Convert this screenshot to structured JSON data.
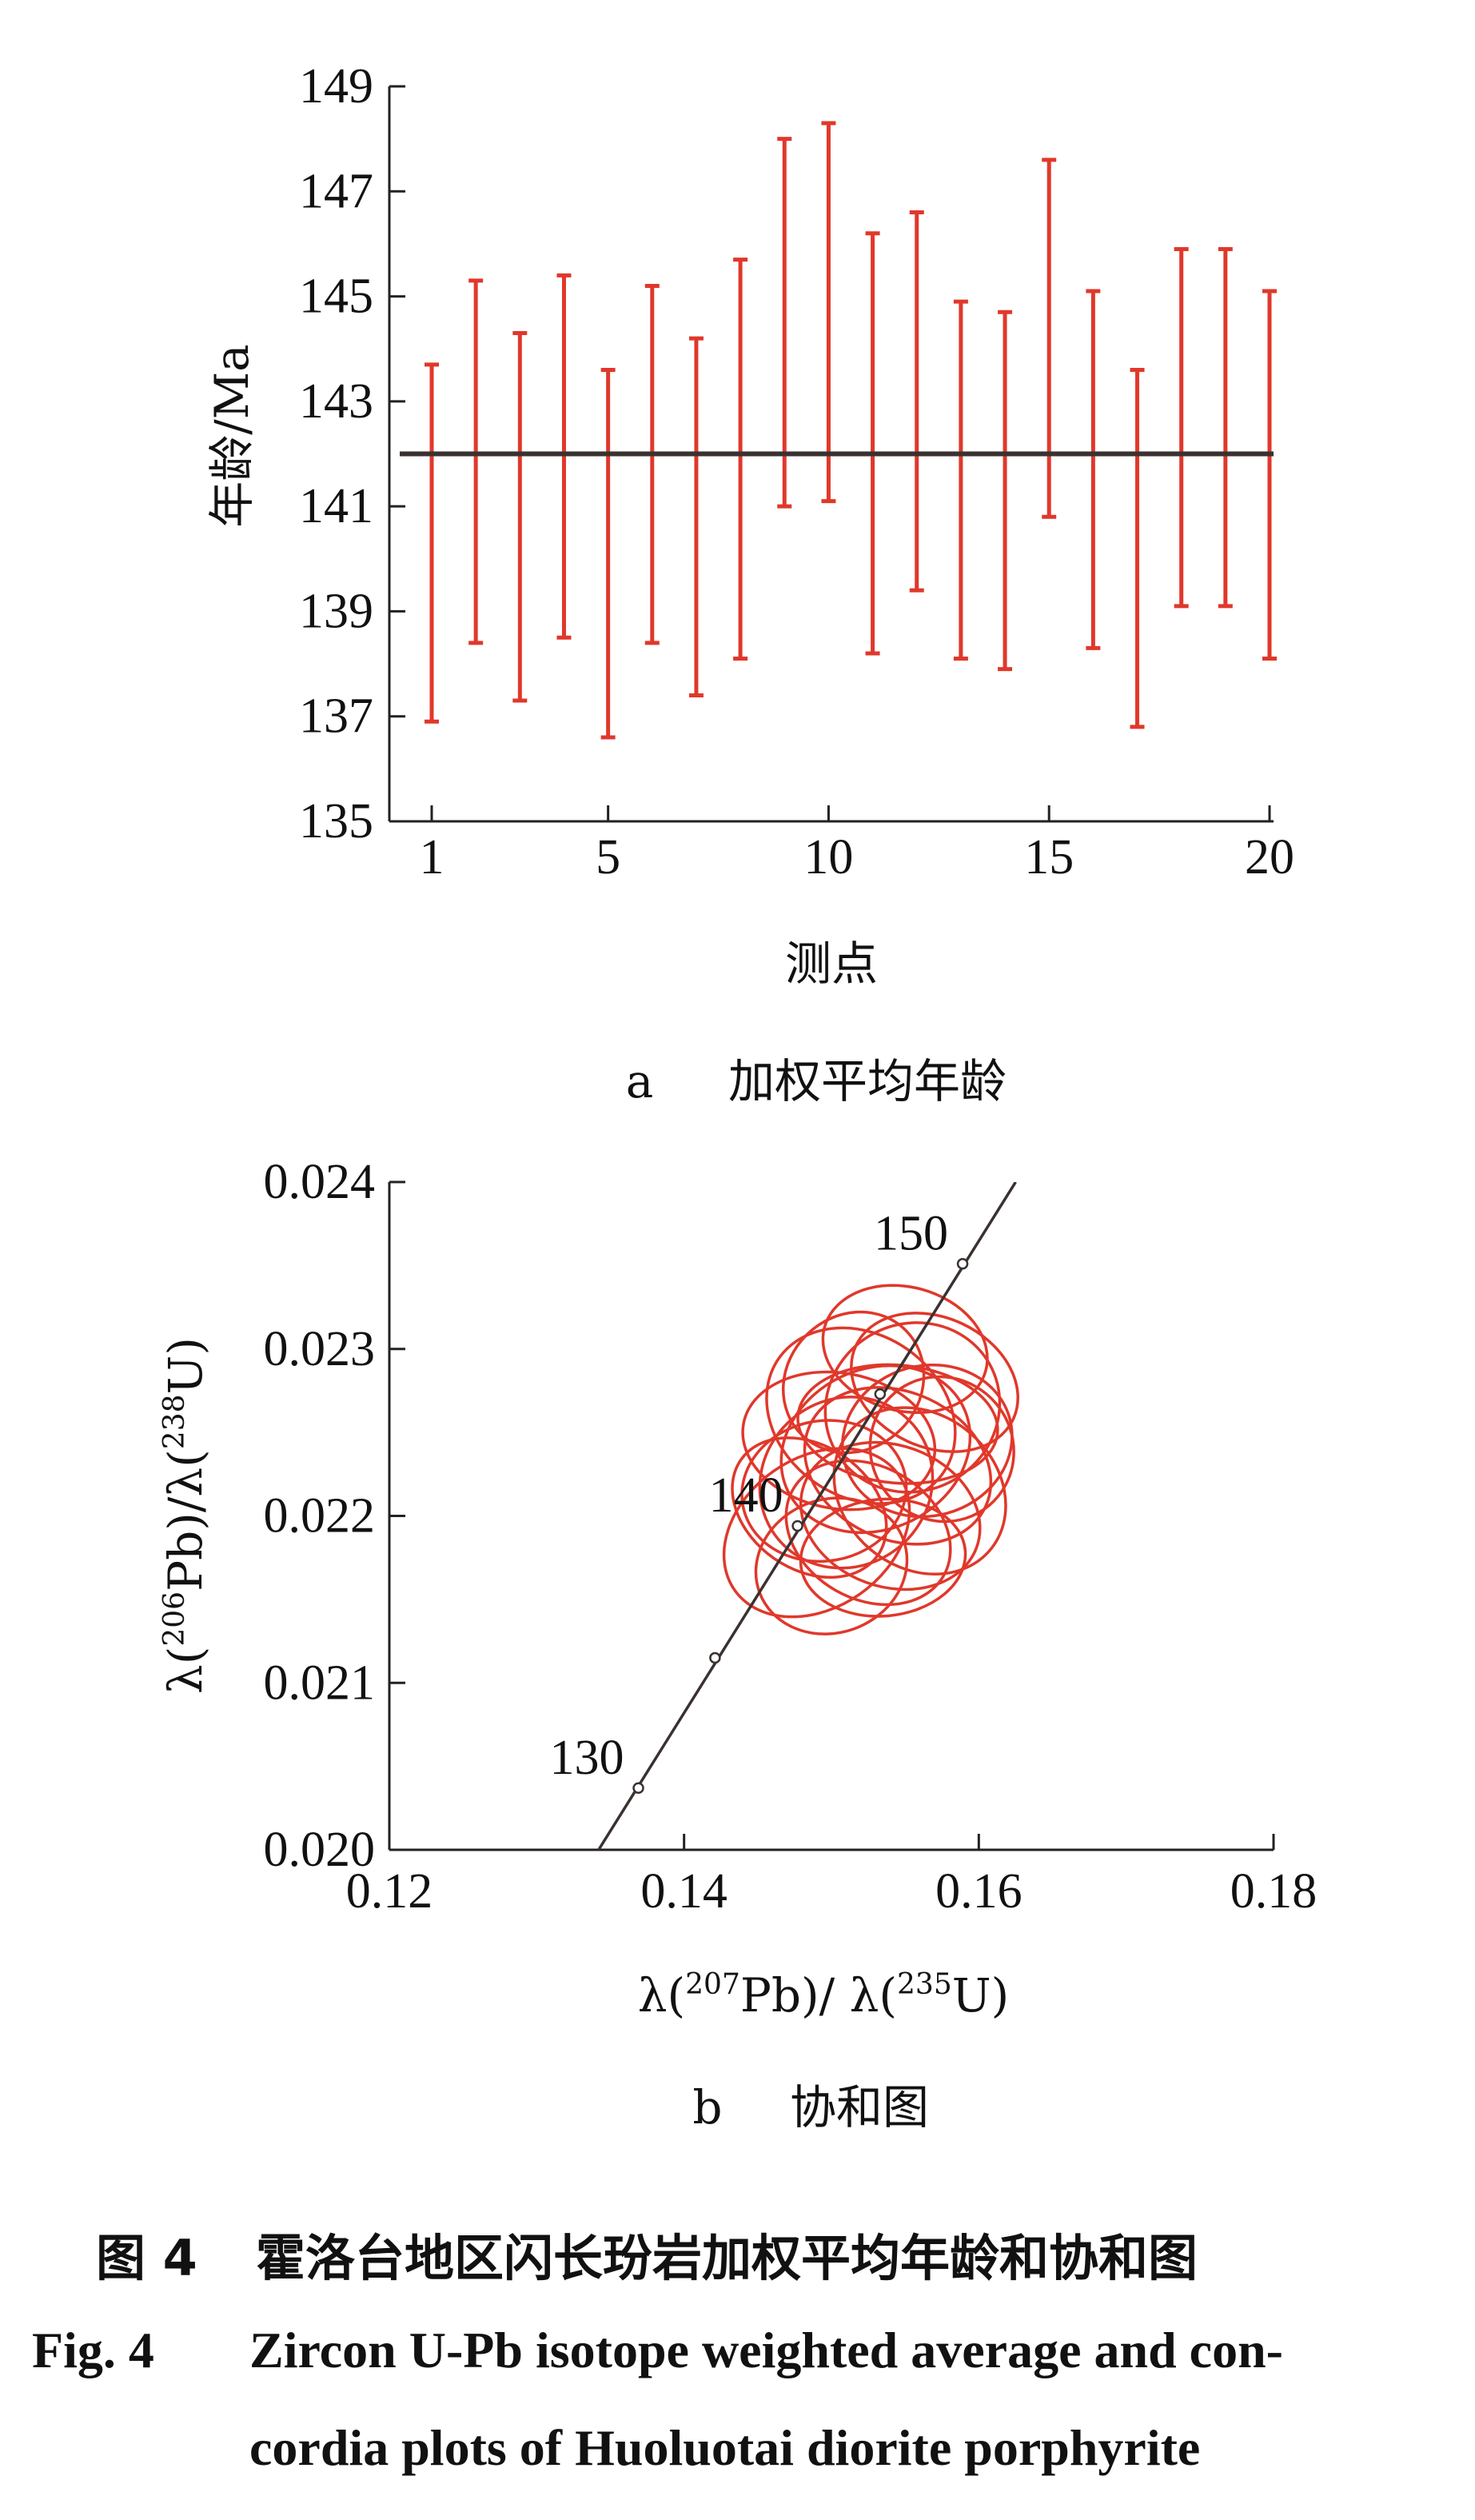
{
  "chart_data": [
    {
      "type": "errorbar",
      "panel_label": "a",
      "panel_title": "加权平均年龄",
      "xlabel": "测点",
      "ylabel": "年龄/Ma",
      "ylim": [
        135,
        149
      ],
      "yticks": [
        135,
        137,
        139,
        141,
        143,
        145,
        147,
        149
      ],
      "xticks": [
        1,
        5,
        10,
        15,
        20
      ],
      "x": [
        1,
        2,
        3,
        4,
        5,
        6,
        7,
        8,
        9,
        10,
        11,
        12,
        13,
        14,
        15,
        16,
        17,
        18,
        19,
        20
      ],
      "upper": [
        143.7,
        145.3,
        144.3,
        145.4,
        143.6,
        145.2,
        144.2,
        145.7,
        148.0,
        148.3,
        146.2,
        146.6,
        144.9,
        144.7,
        147.6,
        145.1,
        143.6,
        145.9,
        145.9,
        145.1
      ],
      "lower": [
        136.9,
        138.4,
        137.3,
        138.5,
        136.6,
        138.4,
        137.4,
        138.1,
        141.0,
        141.1,
        138.2,
        139.4,
        138.1,
        137.9,
        140.8,
        138.3,
        136.8,
        139.1,
        139.1,
        138.1
      ],
      "weighted_mean": 142.0,
      "colors": {
        "bars": "#e0382b",
        "mean": "#3a3230"
      }
    },
    {
      "type": "concordia",
      "panel_label": "b",
      "panel_title": "协和图",
      "xlabel": {
        "a": "λ(",
        "sup1": "207",
        "b": "Pb)/ λ(",
        "sup2": "235",
        "c": "U)"
      },
      "ylabel": {
        "a": "λ(",
        "sup1": "206",
        "b": "Pb)/λ(",
        "sup2": "238",
        "c": "U)"
      },
      "xlim": [
        0.12,
        0.18
      ],
      "ylim": [
        0.02,
        0.024
      ],
      "xticks": [
        "0.12",
        "0.14",
        "0.16",
        "0.18"
      ],
      "yticks": [
        "0.020",
        "0.021",
        "0.022",
        "0.023",
        "0.024"
      ],
      "concordia_age_labels": [
        "130",
        "140",
        "150"
      ],
      "concordia_points": [
        [
          0.1369,
          0.02037
        ],
        [
          0.1421,
          0.02115
        ],
        [
          0.1477,
          0.02194
        ],
        [
          0.1533,
          0.02273
        ],
        [
          0.1589,
          0.02351
        ]
      ],
      "concordia_line": [
        [
          0.1342,
          0.02
        ],
        [
          0.1625,
          0.024
        ]
      ],
      "ellipses": [
        {
          "cx": 0.149,
          "cy": 0.0219,
          "rx": 0.0068,
          "ry": 0.00045,
          "rot": 35
        },
        {
          "cx": 0.151,
          "cy": 0.0222,
          "rx": 0.006,
          "ry": 0.0005,
          "rot": 40
        },
        {
          "cx": 0.153,
          "cy": 0.0224,
          "rx": 0.0066,
          "ry": 0.00048,
          "rot": 25
        },
        {
          "cx": 0.152,
          "cy": 0.0226,
          "rx": 0.0055,
          "ry": 0.0006,
          "rot": 55
        },
        {
          "cx": 0.1545,
          "cy": 0.0223,
          "rx": 0.005,
          "ry": 0.00058,
          "rot": 65
        },
        {
          "cx": 0.15,
          "cy": 0.0217,
          "rx": 0.0052,
          "ry": 0.0004,
          "rot": 20
        },
        {
          "cx": 0.1555,
          "cy": 0.02265,
          "rx": 0.006,
          "ry": 0.0005,
          "rot": 30
        },
        {
          "cx": 0.154,
          "cy": 0.022,
          "rx": 0.0048,
          "ry": 0.00055,
          "rot": 70
        },
        {
          "cx": 0.1565,
          "cy": 0.02245,
          "rx": 0.0058,
          "ry": 0.00045,
          "rot": 15
        },
        {
          "cx": 0.1525,
          "cy": 0.0219,
          "rx": 0.0045,
          "ry": 0.00052,
          "rot": 60
        },
        {
          "cx": 0.1515,
          "cy": 0.0228,
          "rx": 0.005,
          "ry": 0.0004,
          "rot": 45
        },
        {
          "cx": 0.155,
          "cy": 0.023,
          "rx": 0.0042,
          "ry": 0.0005,
          "rot": 75
        },
        {
          "cx": 0.1495,
          "cy": 0.02215,
          "rx": 0.0056,
          "ry": 0.00042,
          "rot": 10
        },
        {
          "cx": 0.156,
          "cy": 0.02215,
          "rx": 0.0052,
          "ry": 0.00055,
          "rot": 50
        },
        {
          "cx": 0.1535,
          "cy": 0.02175,
          "rx": 0.0056,
          "ry": 0.00035,
          "rot": 5
        },
        {
          "cx": 0.1505,
          "cy": 0.02245,
          "rx": 0.0046,
          "ry": 0.00058,
          "rot": 80
        },
        {
          "cx": 0.157,
          "cy": 0.0228,
          "rx": 0.0044,
          "ry": 0.00052,
          "rot": 65
        },
        {
          "cx": 0.1545,
          "cy": 0.02255,
          "rx": 0.004,
          "ry": 0.0006,
          "rot": 85
        },
        {
          "cx": 0.1485,
          "cy": 0.02205,
          "rx": 0.0042,
          "ry": 0.0005,
          "rot": 55
        },
        {
          "cx": 0.1575,
          "cy": 0.0224,
          "rx": 0.0048,
          "ry": 0.00044,
          "rot": 40
        }
      ],
      "colors": {
        "ellipses": "#e0382b",
        "concordia": "#3a3230"
      }
    }
  ],
  "caption": {
    "cn_label": "图 4",
    "cn_text": "霍洛台地区闪长玢岩加权平均年龄和协和图",
    "en_label": "Fig. 4",
    "en_line1": "Zircon U-Pb isotope weighted average and con-",
    "en_line2": "cordia plots of Huoluotai diorite porphyrite"
  }
}
